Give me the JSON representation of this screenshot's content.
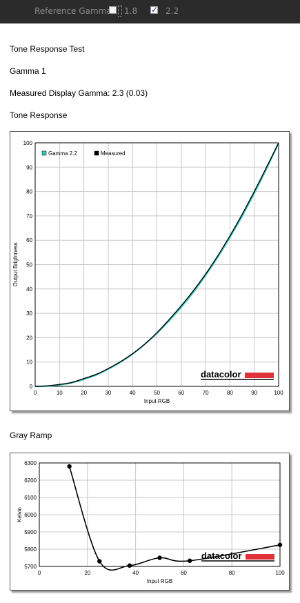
{
  "toolbar": {
    "label": "Reference Gamma:",
    "options": [
      {
        "label": "1.8",
        "checked": false
      },
      {
        "label": "2.2",
        "checked": true
      }
    ]
  },
  "report": {
    "title": "Tone Response Test",
    "subtitle": "Gamma 1",
    "measured": "Measured Display Gamma: 2.3 (0.03)",
    "tone_heading": "Tone Response",
    "gray_heading": "Gray Ramp"
  },
  "logo_text": "datacolor",
  "colors": {
    "gamma": "#33c8c8",
    "measured": "#000000",
    "logo_bar": "#e0303a",
    "grid": "#c8c8c8"
  },
  "chart_data": [
    {
      "type": "line",
      "xlabel": "Input RGB",
      "ylabel": "Output Brightness",
      "xlim": [
        0,
        100
      ],
      "ylim": [
        0,
        100
      ],
      "xticks": [
        0,
        10,
        20,
        30,
        40,
        50,
        60,
        70,
        80,
        90,
        100
      ],
      "yticks": [
        0,
        10,
        20,
        30,
        40,
        50,
        60,
        70,
        80,
        90,
        100
      ],
      "grid": true,
      "legend": "top-left",
      "series": [
        {
          "name": "Gamma 2.2",
          "x": [
            0,
            5,
            10,
            15,
            20,
            25,
            30,
            35,
            40,
            45,
            50,
            55,
            60,
            65,
            70,
            75,
            80,
            85,
            90,
            95,
            100
          ],
          "y": [
            0,
            0.1,
            0.6,
            1.5,
            2.9,
            4.7,
            7.1,
            9.9,
            13.3,
            17.3,
            21.8,
            26.9,
            32.5,
            38.7,
            45.6,
            53.1,
            61.2,
            69.9,
            79.3,
            89.3,
            100
          ]
        },
        {
          "name": "Measured",
          "x": [
            0,
            5,
            10,
            15,
            20,
            25,
            30,
            35,
            40,
            45,
            50,
            55,
            60,
            65,
            70,
            75,
            80,
            85,
            90,
            95,
            100
          ],
          "y": [
            0,
            0.2,
            0.8,
            1.6,
            3.2,
            4.9,
            7.3,
            10.1,
            13.4,
            17.3,
            22.0,
            27.4,
            33.1,
            39.3,
            46.1,
            53.6,
            61.8,
            70.6,
            80.0,
            89.9,
            100
          ]
        }
      ]
    },
    {
      "type": "line",
      "xlabel": "Input RGB",
      "ylabel": "Kelvin",
      "xlim": [
        0,
        100
      ],
      "ylim": [
        5700,
        6300
      ],
      "xticks": [
        0,
        20,
        40,
        60,
        80,
        100
      ],
      "yticks": [
        5700,
        5800,
        5900,
        6000,
        6100,
        6200,
        6300
      ],
      "grid": true,
      "series": [
        {
          "x": [
            12.5,
            25,
            37.5,
            50,
            62.5,
            100
          ],
          "y": [
            6280,
            5730,
            5705,
            5750,
            5733,
            5825
          ]
        }
      ]
    }
  ]
}
